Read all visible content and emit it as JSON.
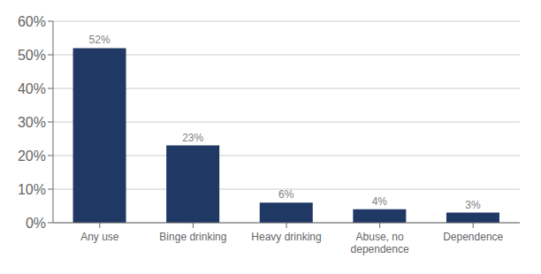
{
  "chart_data": {
    "type": "bar",
    "categories": [
      "Any use",
      "Binge drinking",
      "Heavy drinking",
      "Abuse, no\ndependence",
      "Dependence"
    ],
    "values": [
      52,
      23,
      6,
      4,
      3
    ],
    "value_labels": [
      "52%",
      "23%",
      "6%",
      "4%",
      "3%"
    ],
    "data_labels": true,
    "color": "#1f3864",
    "ylim": [
      0,
      60
    ],
    "yticks": [
      {
        "value": 0,
        "label": "0%"
      },
      {
        "value": 10,
        "label": "10%"
      },
      {
        "value": 20,
        "label": "20%"
      },
      {
        "value": 30,
        "label": "30%"
      },
      {
        "value": 40,
        "label": "40%"
      },
      {
        "value": 50,
        "label": "50%"
      },
      {
        "value": 60,
        "label": "60%"
      }
    ],
    "grid": true
  }
}
